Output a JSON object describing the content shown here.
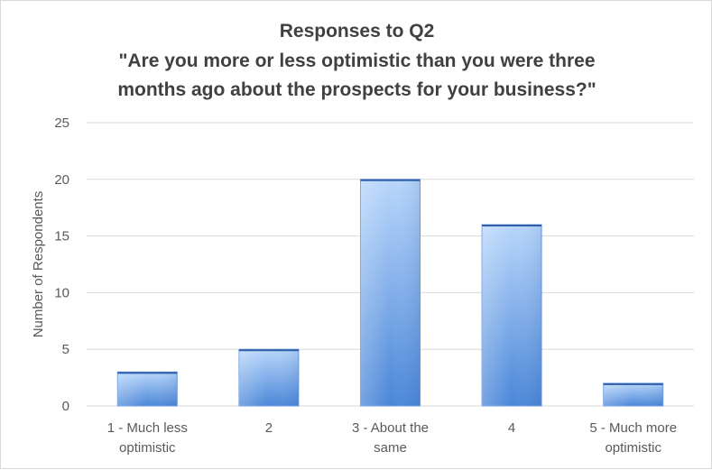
{
  "chart_data": {
    "type": "bar",
    "title": "Responses to Q2",
    "subtitle": [
      "\"Are you more or less optimistic than you were three",
      "months ago about the prospects for your business?\""
    ],
    "xlabel": "",
    "ylabel": "Number of Respondents",
    "categories": [
      [
        "1 - Much less",
        "optimistic"
      ],
      [
        "2"
      ],
      [
        "3 - About the",
        "same"
      ],
      [
        "4"
      ],
      [
        "5 - Much more",
        "optimistic"
      ]
    ],
    "values": [
      3,
      5,
      20,
      16,
      2
    ],
    "ylim": [
      0,
      25
    ],
    "yticks": [
      "0",
      "5",
      "10",
      "15",
      "20",
      "25"
    ],
    "grid": true,
    "legend": "none",
    "colors": {
      "bar_light": "#b8d6fb",
      "bar_dark": "#4a86d8",
      "bar_edge": "#6d9be0",
      "grid": "#d9d9d9",
      "text": "#595959",
      "title": "#404040"
    }
  }
}
